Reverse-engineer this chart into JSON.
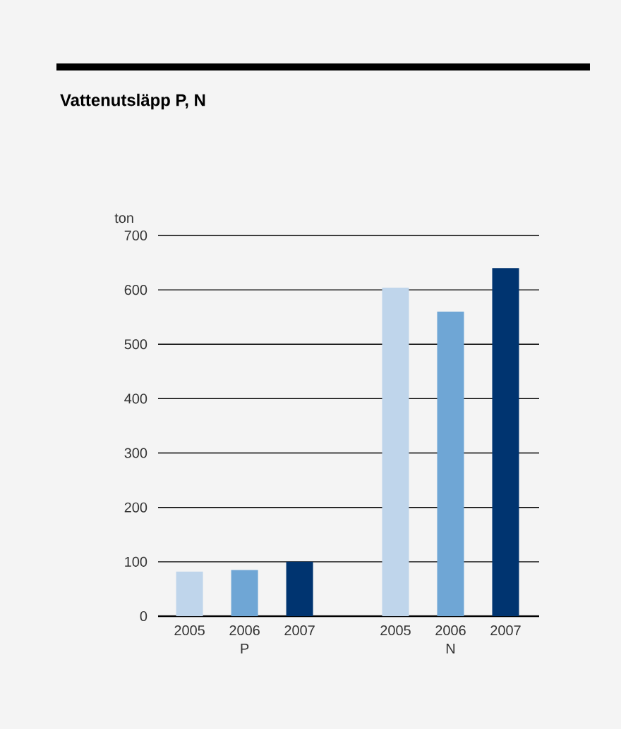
{
  "chart_data": {
    "type": "bar",
    "title": "Vattenutsläpp P, N",
    "ylabel": "ton",
    "categories": [
      "P",
      "N"
    ],
    "series": [
      {
        "name": "2005",
        "color": "#bfd5eb",
        "values": [
          82,
          604
        ]
      },
      {
        "name": "2006",
        "color": "#6fa6d5",
        "values": [
          85,
          560
        ]
      },
      {
        "name": "2007",
        "color": "#003470",
        "values": [
          100,
          640
        ]
      }
    ],
    "ylim": [
      0,
      700
    ],
    "yticks": [
      0,
      100,
      200,
      300,
      400,
      500,
      600,
      700
    ],
    "grid": "y"
  }
}
